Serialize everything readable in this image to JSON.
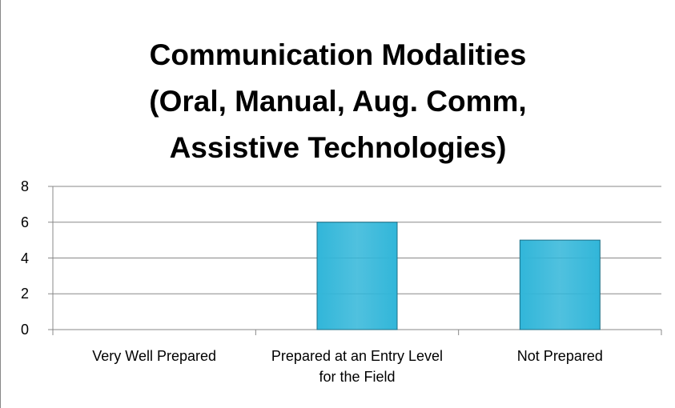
{
  "chart_data": {
    "type": "bar",
    "title": "Communication Modalities (Oral, Manual, Aug. Comm, Assistive Technologies)",
    "categories": [
      "Very Well Prepared",
      "Prepared at an Entry Level for the Field",
      "Not Prepared"
    ],
    "values": [
      0,
      6,
      5
    ],
    "color": "#31b6d9",
    "ylim": [
      0,
      8
    ],
    "yticks": [
      0,
      2,
      4,
      6,
      8
    ],
    "grid": true
  }
}
